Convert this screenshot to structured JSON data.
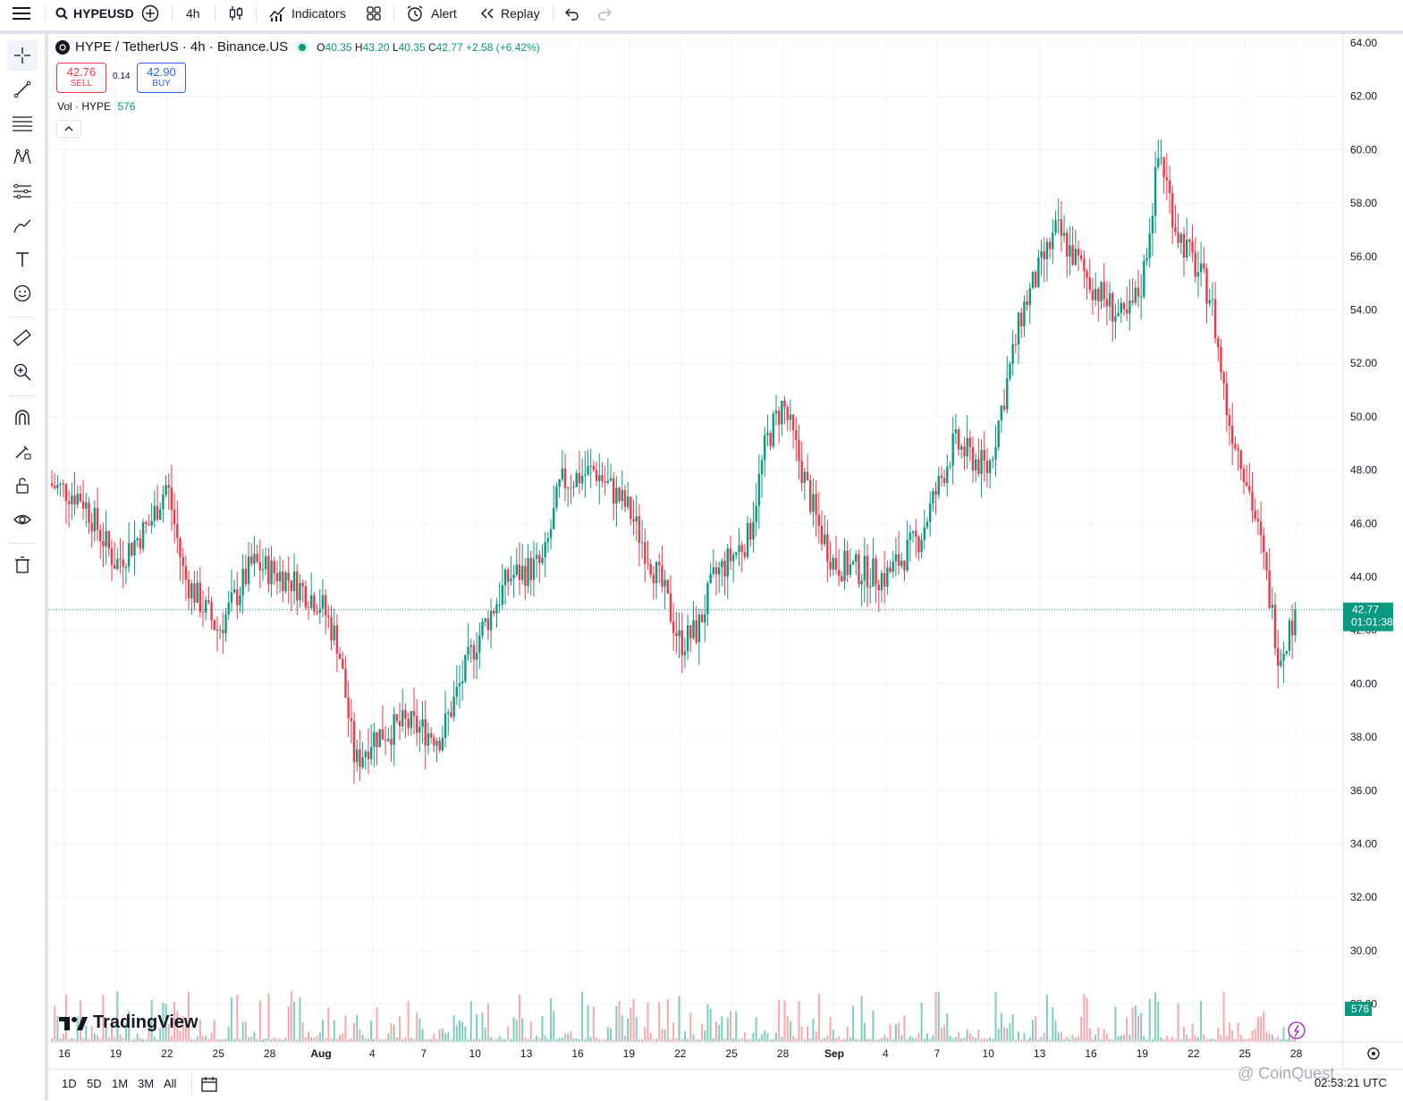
{
  "toolbar": {
    "symbol": "HYPEUSD",
    "interval": "4h",
    "indicators_label": "Indicators",
    "alert_label": "Alert",
    "replay_label": "Replay"
  },
  "legend": {
    "title": "HYPE / TetherUS · 4h · Binance.US",
    "open_label": "O",
    "open": "40.35",
    "high_label": "H",
    "high": "43.20",
    "low_label": "L",
    "low": "40.35",
    "close_label": "C",
    "close": "42.77",
    "change": "+2.58 (+6.42%)",
    "sell_price": "42.76",
    "sell_label": "SELL",
    "spread": "0.14",
    "buy_price": "42.90",
    "buy_label": "BUY",
    "vol_label": "Vol · HYPE",
    "vol_value": "576"
  },
  "price_axis": {
    "labels": [
      "64.00",
      "62.00",
      "60.00",
      "58.00",
      "56.00",
      "54.00",
      "52.00",
      "50.00",
      "48.00",
      "46.00",
      "44.00",
      "42.00",
      "40.00",
      "38.00",
      "36.00",
      "34.00",
      "32.00",
      "30.00",
      "28.00"
    ],
    "current_price": "42.77",
    "countdown": "01:01:38",
    "volume_badge": "576"
  },
  "time_axis": {
    "labels": [
      "16",
      "19",
      "22",
      "25",
      "28",
      "Aug",
      "4",
      "7",
      "10",
      "13",
      "16",
      "19",
      "22",
      "25",
      "28",
      "Sep",
      "4",
      "7",
      "10",
      "13",
      "16",
      "19",
      "22",
      "25",
      "28"
    ]
  },
  "bottom": {
    "ranges": [
      "1D",
      "5D",
      "1M",
      "3M",
      "All"
    ],
    "clock": "02:53:21 UTC"
  },
  "branding": {
    "tradingview": "TradingView",
    "watermark": "@ CoinQuest"
  },
  "colors": {
    "up": "#089981",
    "down": "#f23645",
    "up_volume": "#7fcdbf",
    "down_volume": "#f7a8ad",
    "grid": "#f0f3fa",
    "price_line": "#089981"
  },
  "chart_data": {
    "type": "candlestick",
    "symbol": "HYPE / TetherUS",
    "interval": "4h",
    "exchange": "Binance.US",
    "ylim": [
      35,
      64.5
    ],
    "anchor_points": [
      {
        "x": "Jul 15",
        "y": 47.5
      },
      {
        "x": "Jul 17",
        "y": 47.0
      },
      {
        "x": "Jul 19",
        "y": 44.5
      },
      {
        "x": "Jul 21",
        "y": 46.0
      },
      {
        "x": "Jul 22",
        "y": 47.5
      },
      {
        "x": "Jul 23",
        "y": 44.0
      },
      {
        "x": "Jul 25",
        "y": 42.0
      },
      {
        "x": "Jul 27",
        "y": 44.5
      },
      {
        "x": "Jul 29",
        "y": 44.0
      },
      {
        "x": "Jul 31",
        "y": 43.0
      },
      {
        "x": "Aug 1",
        "y": 41.5
      },
      {
        "x": "Aug 2",
        "y": 37.0
      },
      {
        "x": "Aug 3",
        "y": 38.0
      },
      {
        "x": "Aug 5",
        "y": 38.5
      },
      {
        "x": "Aug 7",
        "y": 38.0
      },
      {
        "x": "Aug 9",
        "y": 41.5
      },
      {
        "x": "Aug 11",
        "y": 44.0
      },
      {
        "x": "Aug 13",
        "y": 44.5
      },
      {
        "x": "Aug 14",
        "y": 47.5
      },
      {
        "x": "Aug 16",
        "y": 48.0
      },
      {
        "x": "Aug 18",
        "y": 46.5
      },
      {
        "x": "Aug 20",
        "y": 43.5
      },
      {
        "x": "Aug 21",
        "y": 41.5
      },
      {
        "x": "Aug 22",
        "y": 42.0
      },
      {
        "x": "Aug 23",
        "y": 44.0
      },
      {
        "x": "Aug 25",
        "y": 45.5
      },
      {
        "x": "Aug 26",
        "y": 49.0
      },
      {
        "x": "Aug 27",
        "y": 50.5
      },
      {
        "x": "Aug 29",
        "y": 46.0
      },
      {
        "x": "Aug 30",
        "y": 44.5
      },
      {
        "x": "Sep 2",
        "y": 44.0
      },
      {
        "x": "Sep 4",
        "y": 45.5
      },
      {
        "x": "Sep 6",
        "y": 49.0
      },
      {
        "x": "Sep 8",
        "y": 48.0
      },
      {
        "x": "Sep 10",
        "y": 54.0
      },
      {
        "x": "Sep 12",
        "y": 57.0
      },
      {
        "x": "Sep 14",
        "y": 55.0
      },
      {
        "x": "Sep 16",
        "y": 53.5
      },
      {
        "x": "Sep 17",
        "y": 55.0
      },
      {
        "x": "Sep 18",
        "y": 60.0
      },
      {
        "x": "Sep 19",
        "y": 57.0
      },
      {
        "x": "Sep 21",
        "y": 54.5
      },
      {
        "x": "Sep 22",
        "y": 50.0
      },
      {
        "x": "Sep 23",
        "y": 48.0
      },
      {
        "x": "Sep 24",
        "y": 45.0
      },
      {
        "x": "Sep 25",
        "y": 41.0
      },
      {
        "x": "Sep 26",
        "y": 42.77
      }
    ],
    "last": {
      "open": 40.35,
      "high": 43.2,
      "low": 40.35,
      "close": 42.77,
      "change": 2.58,
      "change_pct": 6.42
    },
    "volume_last": 576
  }
}
